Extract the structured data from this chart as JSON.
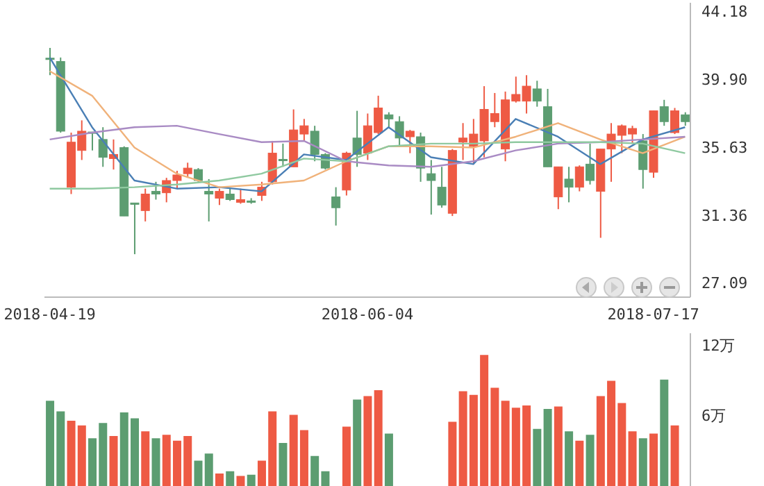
{
  "chart_data": [
    {
      "type": "candlestick",
      "categories": [
        "2018-04-19",
        null,
        null,
        null,
        null,
        null,
        null,
        null,
        null,
        null,
        null,
        null,
        null,
        null,
        null,
        null,
        null,
        null,
        null,
        null,
        null,
        null,
        null,
        null,
        null,
        null,
        null,
        null,
        null,
        null,
        "2018-06-04",
        null,
        null,
        null,
        null,
        null,
        null,
        null,
        null,
        null,
        null,
        null,
        null,
        null,
        null,
        null,
        null,
        null,
        null,
        null,
        null,
        null,
        null,
        null,
        null,
        null,
        null,
        "2018-07-17",
        null,
        null,
        null
      ],
      "ohlc": [
        [
          41.22,
          41.86,
          40.15,
          41.14
        ],
        [
          41.01,
          41.26,
          36.54,
          36.63
        ],
        [
          33.11,
          36.54,
          32.68,
          35.94
        ],
        [
          35.42,
          37.31,
          34.82,
          36.63
        ],
        [
          36.58,
          36.58,
          35.42,
          36.54
        ],
        [
          36.11,
          36.88,
          34.39,
          34.99
        ],
        [
          34.91,
          36.11,
          34.22,
          35.17
        ],
        [
          35.6,
          35.68,
          31.3,
          31.3
        ],
        [
          32.12,
          32.12,
          28.9,
          32.07
        ],
        [
          31.64,
          33.02,
          30.96,
          32.68
        ],
        [
          32.85,
          33.45,
          32.33,
          32.68
        ],
        [
          32.76,
          33.7,
          32.16,
          33.53
        ],
        [
          33.53,
          34.14,
          33.02,
          33.88
        ],
        [
          33.96,
          34.65,
          33.7,
          34.31
        ],
        [
          34.22,
          34.31,
          33.45,
          33.53
        ],
        [
          32.85,
          33.62,
          30.96,
          32.68
        ],
        [
          32.42,
          33.02,
          31.99,
          32.85
        ],
        [
          32.68,
          33.02,
          32.25,
          32.33
        ],
        [
          32.16,
          33.02,
          32.07,
          32.33
        ],
        [
          32.25,
          32.42,
          32.07,
          32.16
        ],
        [
          32.59,
          33.45,
          32.25,
          33.11
        ],
        [
          33.45,
          36.02,
          33.28,
          35.25
        ],
        [
          34.86,
          35.85,
          34.39,
          34.82
        ],
        [
          34.39,
          38.0,
          34.39,
          36.71
        ],
        [
          36.45,
          37.4,
          36.02,
          36.97
        ],
        [
          36.63,
          36.97,
          34.74,
          35.17
        ],
        [
          35.17,
          35.25,
          34.22,
          34.31
        ],
        [
          32.5,
          33.11,
          30.7,
          31.82
        ],
        [
          32.93,
          35.34,
          32.59,
          35.25
        ],
        [
          36.2,
          37.91,
          34.39,
          35.17
        ],
        [
          35.25,
          37.74,
          34.82,
          36.97
        ],
        [
          36.54,
          38.86,
          36.45,
          38.09
        ],
        [
          37.66,
          37.82,
          36.88,
          37.4
        ],
        [
          37.23,
          37.57,
          35.68,
          36.2
        ],
        [
          36.28,
          36.71,
          35.25,
          36.63
        ],
        [
          36.28,
          36.54,
          33.45,
          34.31
        ],
        [
          33.96,
          34.82,
          31.39,
          33.53
        ],
        [
          33.11,
          34.39,
          31.82,
          31.99
        ],
        [
          31.47,
          35.51,
          31.3,
          35.42
        ],
        [
          35.94,
          37.14,
          34.82,
          36.2
        ],
        [
          35.68,
          37.4,
          34.56,
          36.45
        ],
        [
          36.02,
          39.46,
          34.99,
          38.0
        ],
        [
          37.23,
          39.03,
          36.88,
          37.74
        ],
        [
          35.51,
          39.12,
          34.74,
          38.6
        ],
        [
          38.52,
          40.06,
          38.43,
          38.94
        ],
        [
          38.52,
          40.15,
          37.74,
          39.46
        ],
        [
          39.29,
          39.8,
          38.17,
          38.52
        ],
        [
          38.17,
          39.29,
          34.39,
          34.39
        ],
        [
          32.5,
          34.39,
          31.73,
          34.39
        ],
        [
          33.62,
          34.39,
          32.16,
          33.11
        ],
        [
          33.11,
          34.48,
          32.85,
          34.39
        ],
        [
          34.56,
          35.85,
          33.28,
          33.53
        ],
        [
          32.85,
          35.51,
          29.93,
          35.51
        ],
        [
          35.51,
          37.14,
          33.45,
          36.45
        ],
        [
          36.37,
          37.05,
          35.25,
          36.97
        ],
        [
          36.45,
          36.97,
          35.85,
          36.8
        ],
        [
          36.02,
          36.45,
          33.02,
          34.22
        ],
        [
          34.05,
          37.91,
          33.7,
          37.91
        ],
        [
          38.17,
          38.6,
          36.97,
          37.23
        ],
        [
          36.54,
          38.09,
          36.45,
          37.91
        ],
        [
          37.66,
          37.82,
          36.97,
          37.23
        ]
      ],
      "colors": [
        "#5c9d71",
        "#5c9d71",
        "#ee5a44",
        "#ee5a44",
        "#5c9d71",
        "#5c9d71",
        "#ee5a44",
        "#5c9d71",
        "#5c9d71",
        "#ee5a44",
        "#5c9d71",
        "#ee5a44",
        "#ee5a44",
        "#ee5a44",
        "#5c9d71",
        "#5c9d71",
        "#ee5a44",
        "#5c9d71",
        "#ee5a44",
        "#5c9d71",
        "#ee5a44",
        "#ee5a44",
        "#5c9d71",
        "#ee5a44",
        "#ee5a44",
        "#5c9d71",
        "#5c9d71",
        "#5c9d71",
        "#ee5a44",
        "#5c9d71",
        "#ee5a44",
        "#ee5a44",
        "#5c9d71",
        "#5c9d71",
        "#ee5a44",
        "#5c9d71",
        "#5c9d71",
        "#5c9d71",
        "#ee5a44",
        "#ee5a44",
        "#ee5a44",
        "#ee5a44",
        "#ee5a44",
        "#ee5a44",
        "#ee5a44",
        "#ee5a44",
        "#5c9d71",
        "#5c9d71",
        "#ee5a44",
        "#5c9d71",
        "#ee5a44",
        "#5c9d71",
        "#ee5a44",
        "#ee5a44",
        "#ee5a44",
        "#ee5a44",
        "#5c9d71",
        "#ee5a44",
        "#5c9d71",
        "#ee5a44",
        "#5c9d71"
      ],
      "series": [
        {
          "type": "line",
          "color": "#4a7fb5",
          "values": [
            41.26,
            null,
            null,
            null,
            36.88,
            null,
            null,
            null,
            33.53,
            null,
            null,
            null,
            33.02,
            null,
            null,
            null,
            33.11,
            null,
            null,
            null,
            32.85,
            null,
            null,
            null,
            35.17,
            null,
            null,
            null,
            34.82,
            null,
            null,
            null,
            36.88,
            null,
            null,
            null,
            34.99,
            null,
            null,
            null,
            34.56,
            null,
            null,
            null,
            37.4,
            null,
            null,
            null,
            36.28,
            null,
            null,
            null,
            34.56,
            null,
            null,
            null,
            36.11,
            null,
            null,
            null,
            36.88
          ]
        },
        {
          "type": "line",
          "color": "#f0b27a",
          "values": [
            40.4,
            null,
            null,
            null,
            38.86,
            null,
            null,
            null,
            35.6,
            null,
            null,
            null,
            33.96,
            null,
            null,
            null,
            33.11,
            null,
            null,
            null,
            33.28,
            null,
            null,
            null,
            33.53,
            null,
            null,
            null,
            34.74,
            null,
            null,
            null,
            35.68,
            null,
            null,
            null,
            35.68,
            null,
            null,
            null,
            35.6,
            null,
            null,
            null,
            36.28,
            null,
            null,
            null,
            37.14,
            null,
            null,
            null,
            36.11,
            null,
            null,
            null,
            35.25,
            null,
            null,
            null,
            36.28
          ]
        },
        {
          "type": "line",
          "color": "#a98bc4",
          "values": [
            36.11,
            null,
            null,
            null,
            36.54,
            null,
            null,
            null,
            36.88,
            null,
            null,
            null,
            36.97,
            null,
            null,
            null,
            36.45,
            null,
            null,
            null,
            35.94,
            null,
            null,
            null,
            36.02,
            null,
            null,
            null,
            34.74,
            null,
            null,
            null,
            34.48,
            null,
            null,
            null,
            34.39,
            null,
            null,
            null,
            34.74,
            null,
            null,
            null,
            35.42,
            null,
            null,
            null,
            35.85,
            null,
            null,
            null,
            35.94,
            null,
            null,
            null,
            36.11,
            null,
            null,
            null,
            36.28
          ]
        },
        {
          "type": "line",
          "color": "#8fc9a0",
          "values": [
            33.02,
            null,
            null,
            null,
            33.02,
            null,
            null,
            null,
            33.11,
            null,
            null,
            null,
            33.28,
            null,
            null,
            null,
            33.53,
            null,
            null,
            null,
            33.96,
            null,
            null,
            null,
            34.91,
            null,
            null,
            null,
            34.74,
            null,
            null,
            null,
            35.68,
            null,
            null,
            null,
            35.85,
            null,
            null,
            null,
            35.85,
            null,
            null,
            null,
            35.94,
            null,
            null,
            null,
            35.94,
            null,
            null,
            null,
            35.94,
            null,
            null,
            null,
            35.85,
            null,
            null,
            null,
            35.25
          ]
        }
      ],
      "ylim": [
        26.2,
        44.7
      ],
      "yticks": [
        44.18,
        {
          "value": 39.9,
          "label": "39.90"
        },
        35.63,
        31.36,
        27.09
      ]
    },
    {
      "type": "bar",
      "categories": [
        "2018-04-19",
        null,
        null,
        null,
        null,
        null,
        null,
        null,
        null,
        null,
        null,
        null,
        null,
        null,
        null,
        null,
        null,
        null,
        null,
        null,
        null,
        null,
        null,
        null,
        null,
        null,
        null,
        null,
        null,
        null,
        "2018-06-04",
        null,
        null,
        null,
        null,
        null,
        null,
        null,
        null,
        null,
        null,
        null,
        null,
        null,
        null,
        null,
        null,
        null,
        null,
        null,
        null,
        null,
        null,
        null,
        null,
        null,
        null,
        "2018-07-17",
        null,
        null,
        null
      ],
      "values": [
        7.2,
        6.3,
        5.5,
        5.1,
        4.0,
        5.3,
        4.2,
        6.2,
        5.7,
        4.6,
        4.0,
        4.3,
        3.8,
        4.2,
        2.1,
        2.7,
        1.0,
        1.2,
        0.8,
        0.9,
        2.1,
        6.3,
        3.6,
        6.0,
        4.7,
        2.5,
        1.2,
        null,
        5.0,
        7.3,
        7.6,
        8.1,
        4.4,
        null,
        null,
        null,
        null,
        null,
        5.4,
        8.0,
        7.7,
        11.1,
        8.3,
        7.2,
        6.6,
        6.8,
        4.8,
        6.5,
        6.7,
        4.6,
        3.8,
        4.3,
        7.6,
        8.9,
        7.0,
        4.6,
        4.0,
        4.4,
        9.0,
        5.1,
        null
      ],
      "colors": [
        "#5c9d71",
        "#5c9d71",
        "#ee5a44",
        "#ee5a44",
        "#5c9d71",
        "#5c9d71",
        "#ee5a44",
        "#5c9d71",
        "#5c9d71",
        "#ee5a44",
        "#5c9d71",
        "#ee5a44",
        "#ee5a44",
        "#ee5a44",
        "#5c9d71",
        "#5c9d71",
        "#ee5a44",
        "#5c9d71",
        "#ee5a44",
        "#5c9d71",
        "#ee5a44",
        "#ee5a44",
        "#5c9d71",
        "#ee5a44",
        "#ee5a44",
        "#5c9d71",
        "#5c9d71",
        "#5c9d71",
        "#ee5a44",
        "#5c9d71",
        "#ee5a44",
        "#ee5a44",
        "#5c9d71",
        "#5c9d71",
        "#ee5a44",
        "#5c9d71",
        "#5c9d71",
        "#5c9d71",
        "#ee5a44",
        "#ee5a44",
        "#ee5a44",
        "#ee5a44",
        "#ee5a44",
        "#ee5a44",
        "#ee5a44",
        "#ee5a44",
        "#5c9d71",
        "#5c9d71",
        "#ee5a44",
        "#5c9d71",
        "#ee5a44",
        "#5c9d71",
        "#ee5a44",
        "#ee5a44",
        "#ee5a44",
        "#ee5a44",
        "#5c9d71",
        "#ee5a44",
        "#5c9d71",
        "#ee5a44",
        "#5c9d71"
      ],
      "ylim": [
        0,
        13
      ],
      "yticks": [
        {
          "value": 12,
          "label": "12万"
        },
        {
          "value": 6,
          "label": "6万"
        }
      ],
      "tick_labels": "y"
    }
  ]
}
